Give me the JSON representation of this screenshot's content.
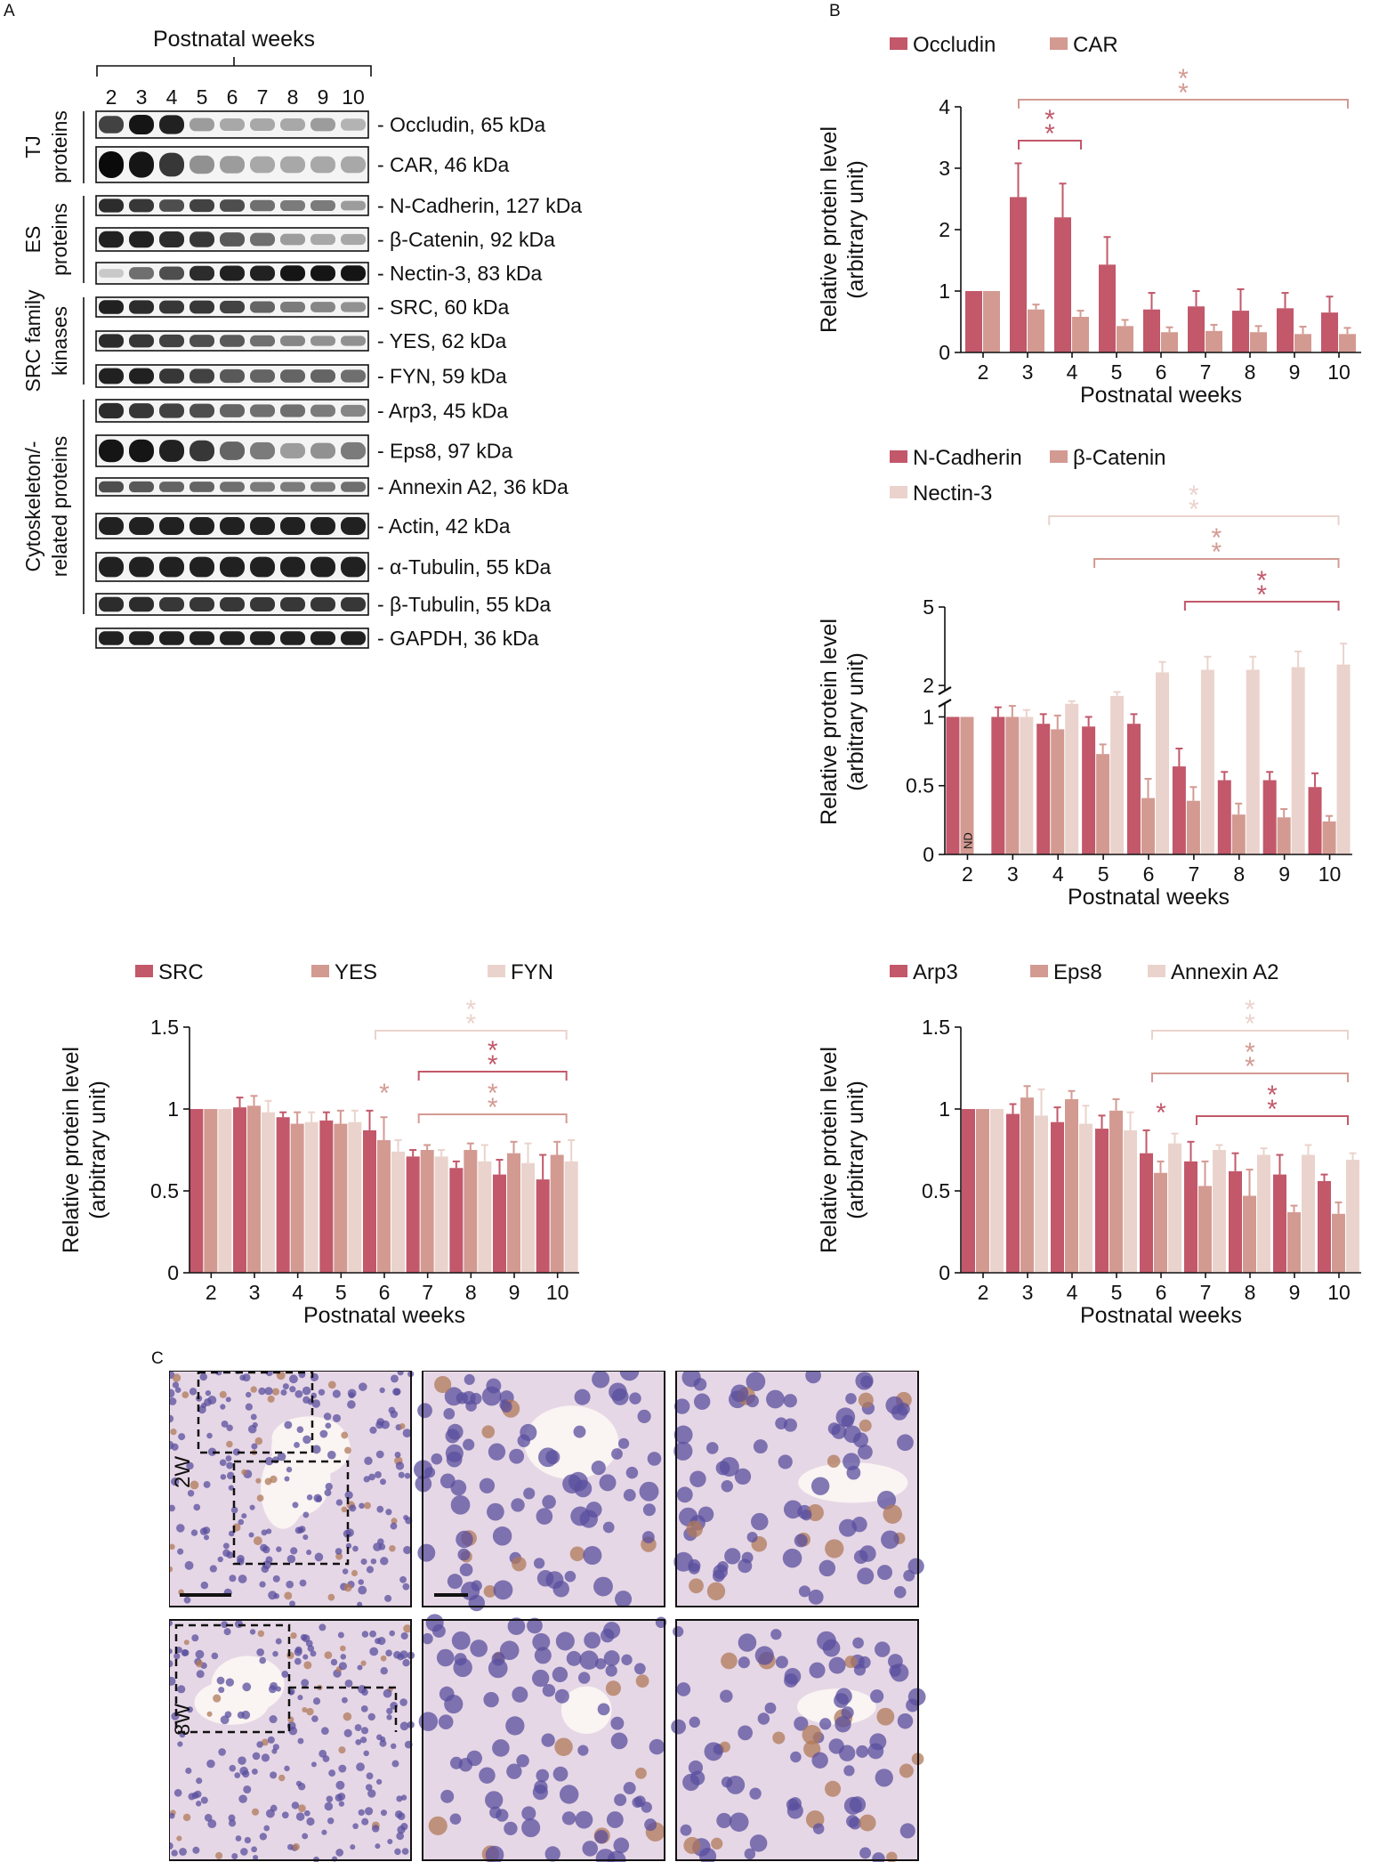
{
  "panel_labels": [
    "A",
    "B",
    "C"
  ],
  "colors": {
    "c1": "#c2586a",
    "c2": "#d39a92",
    "c3": "#ead3cc",
    "text": "#111111"
  },
  "western": {
    "title": "Postnatal weeks",
    "lanes": [
      "2",
      "3",
      "4",
      "5",
      "6",
      "7",
      "8",
      "9",
      "10"
    ],
    "groups": [
      {
        "line1": "TJ",
        "line2": "proteins"
      },
      {
        "line1": "ES",
        "line2": "proteins"
      },
      {
        "line1": "SRC family",
        "line2": "kinases"
      },
      {
        "line1": "Cytoskeleton/-",
        "line2": "related proteins"
      }
    ],
    "blots": [
      {
        "label": "Occludin, 65 kDa",
        "intensity": [
          0.75,
          0.95,
          0.9,
          0.35,
          0.3,
          0.3,
          0.3,
          0.35,
          0.25
        ]
      },
      {
        "label": "CAR, 46 kDa",
        "intensity": [
          1.0,
          0.95,
          0.8,
          0.4,
          0.35,
          0.3,
          0.3,
          0.3,
          0.3
        ]
      },
      {
        "label": "N-Cadherin, 127 kDa",
        "intensity": [
          0.85,
          0.8,
          0.7,
          0.75,
          0.7,
          0.55,
          0.5,
          0.5,
          0.35
        ]
      },
      {
        "label": "β-Catenin, 92 kDa",
        "intensity": [
          0.9,
          0.9,
          0.85,
          0.8,
          0.65,
          0.55,
          0.35,
          0.3,
          0.3
        ]
      },
      {
        "label": "Nectin-3, 83 kDa",
        "intensity": [
          0.15,
          0.55,
          0.7,
          0.85,
          0.9,
          0.9,
          0.95,
          0.95,
          0.95
        ]
      },
      {
        "label": "SRC, 60 kDa",
        "intensity": [
          0.9,
          0.85,
          0.8,
          0.8,
          0.75,
          0.6,
          0.5,
          0.45,
          0.4
        ]
      },
      {
        "label": "YES, 62 kDa",
        "intensity": [
          0.85,
          0.8,
          0.75,
          0.7,
          0.65,
          0.55,
          0.45,
          0.4,
          0.4
        ]
      },
      {
        "label": "FYN, 59 kDa",
        "intensity": [
          0.9,
          0.9,
          0.8,
          0.75,
          0.65,
          0.6,
          0.6,
          0.6,
          0.55
        ]
      },
      {
        "label": "Arp3, 45 kDa",
        "intensity": [
          0.85,
          0.8,
          0.75,
          0.7,
          0.6,
          0.55,
          0.55,
          0.5,
          0.45
        ]
      },
      {
        "label": "Eps8, 97 kDa",
        "intensity": [
          0.95,
          0.95,
          0.9,
          0.8,
          0.6,
          0.5,
          0.35,
          0.4,
          0.5
        ]
      },
      {
        "label": "Annexin A2, 36 kDa",
        "intensity": [
          0.7,
          0.65,
          0.6,
          0.6,
          0.55,
          0.5,
          0.5,
          0.5,
          0.55
        ]
      },
      {
        "label": "Actin, 42 kDa",
        "intensity": [
          0.9,
          0.9,
          0.9,
          0.9,
          0.9,
          0.9,
          0.9,
          0.9,
          0.9
        ]
      },
      {
        "label": "α-Tubulin, 55 kDa",
        "intensity": [
          0.9,
          0.9,
          0.9,
          0.9,
          0.9,
          0.9,
          0.9,
          0.9,
          0.9
        ]
      },
      {
        "label": "β-Tubulin, 55 kDa",
        "intensity": [
          0.85,
          0.85,
          0.8,
          0.8,
          0.8,
          0.8,
          0.8,
          0.8,
          0.8
        ]
      },
      {
        "label": "GAPDH, 36 kDa",
        "intensity": [
          0.9,
          0.9,
          0.9,
          0.9,
          0.9,
          0.9,
          0.9,
          0.9,
          0.9
        ]
      }
    ]
  },
  "histology": {
    "rows": [
      "2W",
      "8W"
    ]
  },
  "chart_data": [
    {
      "type": "bar",
      "panel": "B-top",
      "xlabel": "Postnatal weeks",
      "ylabel": "Relative protein level",
      "ylabel2": "(arbitrary unit)",
      "categories": [
        "2",
        "3",
        "4",
        "5",
        "6",
        "7",
        "8",
        "9",
        "10"
      ],
      "ylim": [
        0,
        4
      ],
      "yticks": [
        "0",
        "1",
        "2",
        "3",
        "4"
      ],
      "series": [
        {
          "name": "Occludin",
          "values": [
            1,
            2.53,
            2.2,
            1.43,
            0.7,
            0.75,
            0.68,
            0.72,
            0.65
          ],
          "errors": [
            0,
            0.55,
            0.55,
            0.45,
            0.27,
            0.25,
            0.35,
            0.25,
            0.26
          ]
        },
        {
          "name": "CAR",
          "values": [
            1,
            0.7,
            0.58,
            0.43,
            0.33,
            0.35,
            0.33,
            0.3,
            0.3
          ],
          "errors": [
            0,
            0.08,
            0.1,
            0.1,
            0.08,
            0.1,
            0.1,
            0.12,
            0.1
          ]
        }
      ],
      "significance": [
        {
          "from": "3",
          "to": "4",
          "series": "Occludin",
          "label": "**"
        },
        {
          "from": "3",
          "to": "10",
          "series": "CAR",
          "label": "**"
        }
      ]
    },
    {
      "type": "bar",
      "panel": "B-middle",
      "xlabel": "Postnatal weeks",
      "ylabel": "Relative protein level",
      "ylabel2": "(arbitrary unit)",
      "categories": [
        "2",
        "3",
        "4",
        "5",
        "6",
        "7",
        "8",
        "9",
        "10"
      ],
      "ylim": [
        0,
        5
      ],
      "axis_break": [
        1.1,
        1.8
      ],
      "yticks": [
        "0",
        "0.5",
        "1",
        "2",
        "5"
      ],
      "annotation": {
        "text": "ND",
        "category": "2",
        "series": "β-Catenin"
      },
      "series": [
        {
          "name": "N-Cadherin",
          "values": [
            1,
            1,
            0.95,
            0.93,
            0.95,
            0.64,
            0.54,
            0.54,
            0.49
          ],
          "errors": [
            0,
            0.07,
            0.07,
            0.07,
            0.07,
            0.13,
            0.06,
            0.06,
            0.1
          ]
        },
        {
          "name": "β-Catenin",
          "values": [
            1,
            1,
            0.91,
            0.73,
            0.41,
            0.39,
            0.29,
            0.27,
            0.24
          ],
          "errors": [
            0,
            0.08,
            0.1,
            0.07,
            0.14,
            0.1,
            0.08,
            0.06,
            0.04
          ]
        },
        {
          "name": "Nectin-3",
          "values": [
            null,
            1,
            1.3,
            1.6,
            2.5,
            2.6,
            2.6,
            2.7,
            2.8
          ],
          "errors": [
            0,
            0.05,
            0.1,
            0.15,
            0.4,
            0.5,
            0.5,
            0.6,
            0.8
          ]
        }
      ],
      "significance": [
        {
          "from": "4",
          "to": "10",
          "series": "Nectin-3",
          "label": "**"
        },
        {
          "from": "5",
          "to": "10",
          "series": "β-Catenin",
          "label": "**"
        },
        {
          "from": "7",
          "to": "10",
          "series": "N-Cadherin",
          "label": "**"
        }
      ]
    },
    {
      "type": "bar",
      "panel": "B-bottom-left",
      "xlabel": "Postnatal weeks",
      "ylabel": "Relative protein level",
      "ylabel2": "(arbitrary unit)",
      "categories": [
        "2",
        "3",
        "4",
        "5",
        "6",
        "7",
        "8",
        "9",
        "10"
      ],
      "ylim": [
        0,
        1.5
      ],
      "yticks": [
        "0",
        "0.5",
        "1",
        "1.5"
      ],
      "series": [
        {
          "name": "SRC",
          "values": [
            1,
            1.01,
            0.95,
            0.93,
            0.87,
            0.71,
            0.64,
            0.6,
            0.57
          ],
          "errors": [
            0,
            0.06,
            0.03,
            0.05,
            0.12,
            0.04,
            0.04,
            0.09,
            0.15
          ]
        },
        {
          "name": "YES",
          "values": [
            1,
            1.02,
            0.91,
            0.91,
            0.81,
            0.75,
            0.75,
            0.73,
            0.72
          ],
          "errors": [
            0,
            0.06,
            0.07,
            0.08,
            0.14,
            0.03,
            0.04,
            0.07,
            0.08
          ]
        },
        {
          "name": "FYN",
          "values": [
            1,
            0.98,
            0.92,
            0.92,
            0.74,
            0.71,
            0.68,
            0.67,
            0.68
          ],
          "errors": [
            0,
            0.07,
            0.06,
            0.07,
            0.07,
            0.04,
            0.1,
            0.12,
            0.13
          ]
        }
      ],
      "significance": [
        {
          "from": "6",
          "to": "10",
          "series": "FYN",
          "label": "**"
        },
        {
          "from": "7",
          "to": "10",
          "series": "SRC",
          "label": "**"
        },
        {
          "from": "7",
          "to": "10",
          "series": "YES",
          "label": "**"
        },
        {
          "single": "6",
          "series": "YES",
          "label": "*"
        }
      ]
    },
    {
      "type": "bar",
      "panel": "B-bottom-right",
      "xlabel": "Postnatal weeks",
      "ylabel": "Relative protein level",
      "ylabel2": "(arbitrary unit)",
      "categories": [
        "2",
        "3",
        "4",
        "5",
        "6",
        "7",
        "8",
        "9",
        "10"
      ],
      "ylim": [
        0,
        1.5
      ],
      "yticks": [
        "0",
        "0.5",
        "1",
        "1.5"
      ],
      "series": [
        {
          "name": "Arp3",
          "values": [
            1,
            0.97,
            0.92,
            0.88,
            0.73,
            0.68,
            0.62,
            0.6,
            0.56
          ],
          "errors": [
            0,
            0.06,
            0.09,
            0.08,
            0.14,
            0.12,
            0.11,
            0.12,
            0.04
          ]
        },
        {
          "name": "Eps8",
          "values": [
            1,
            1.07,
            1.06,
            0.99,
            0.61,
            0.53,
            0.47,
            0.37,
            0.36
          ],
          "errors": [
            0,
            0.07,
            0.05,
            0.07,
            0.07,
            0.15,
            0.16,
            0.04,
            0.07
          ]
        },
        {
          "name": "Annexin A2",
          "values": [
            1,
            0.96,
            0.91,
            0.87,
            0.79,
            0.75,
            0.72,
            0.72,
            0.69
          ],
          "errors": [
            0,
            0.16,
            0.11,
            0.11,
            0.06,
            0.03,
            0.04,
            0.06,
            0.04
          ]
        }
      ],
      "significance": [
        {
          "from": "6",
          "to": "10",
          "series": "Annexin A2",
          "label": "**"
        },
        {
          "from": "6",
          "to": "10",
          "series": "Eps8",
          "label": "**"
        },
        {
          "from": "7",
          "to": "10",
          "series": "Arp3",
          "label": "**"
        },
        {
          "single": "6",
          "series": "Arp3",
          "label": "*"
        }
      ]
    }
  ]
}
